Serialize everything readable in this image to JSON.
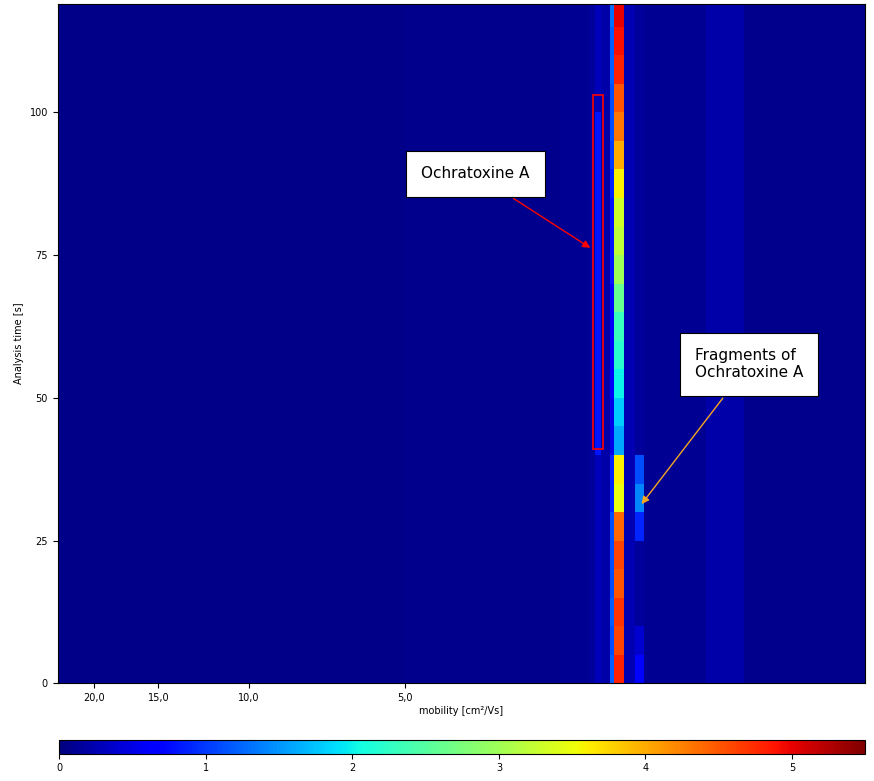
{
  "chart_data": {
    "type": "heatmap",
    "xlabel": "mobility [cm²/Vs]",
    "ylabel": "Analysis time [s]",
    "log": "x",
    "xlim": [
      23.5,
      0.64
    ],
    "xticks": [
      {
        "value": 20,
        "label": "20,0"
      },
      {
        "value": 15,
        "label": "15,0"
      },
      {
        "value": 10,
        "label": "10,0"
      },
      {
        "value": 5,
        "label": "5,0"
      }
    ],
    "ylim": [
      0,
      119
    ],
    "yticks": [
      0,
      25,
      50,
      75,
      100
    ],
    "x_edges": [
      23.5,
      5,
      2.5,
      2.2,
      2.14,
      2.08,
      2.0,
      1.96,
      1.875,
      1.79,
      1.72,
      1.3,
      1.1,
      0.64
    ],
    "y_edges": [
      0,
      5,
      10,
      15,
      20,
      25,
      30,
      35,
      40,
      45,
      50,
      55,
      60,
      65,
      70,
      75,
      80,
      85,
      90,
      95,
      100,
      105,
      110,
      115,
      119
    ],
    "cells": [
      [
        0.05,
        0.08,
        0.1,
        0.15,
        0.3,
        0.2,
        1.2,
        4.8,
        0.25,
        0.7,
        0.1,
        0.2,
        0.08
      ],
      [
        0.05,
        0.08,
        0.1,
        0.15,
        0.3,
        0.2,
        1.1,
        4.6,
        0.25,
        0.4,
        0.1,
        0.2,
        0.08
      ],
      [
        0.05,
        0.08,
        0.1,
        0.15,
        0.3,
        0.2,
        1.2,
        4.7,
        0.25,
        0.15,
        0.1,
        0.2,
        0.08
      ],
      [
        0.05,
        0.08,
        0.1,
        0.15,
        0.3,
        0.2,
        1.1,
        4.5,
        0.25,
        0.15,
        0.1,
        0.2,
        0.08
      ],
      [
        0.05,
        0.08,
        0.1,
        0.15,
        0.3,
        0.2,
        1.1,
        4.6,
        0.25,
        0.15,
        0.1,
        0.2,
        0.08
      ],
      [
        0.05,
        0.08,
        0.1,
        0.15,
        0.3,
        0.2,
        1.1,
        4.4,
        0.25,
        0.9,
        0.1,
        0.2,
        0.08
      ],
      [
        0.05,
        0.08,
        0.1,
        0.15,
        0.3,
        0.2,
        0.9,
        3.5,
        0.25,
        1.4,
        0.1,
        0.2,
        0.08
      ],
      [
        0.05,
        0.08,
        0.1,
        0.15,
        0.3,
        0.2,
        0.9,
        3.6,
        0.25,
        1.1,
        0.1,
        0.2,
        0.08
      ],
      [
        0.05,
        0.08,
        0.1,
        0.15,
        0.8,
        0.2,
        0.5,
        1.6,
        0.25,
        0.15,
        0.1,
        0.2,
        0.08
      ],
      [
        0.05,
        0.08,
        0.1,
        0.15,
        0.8,
        0.2,
        0.5,
        1.8,
        0.25,
        0.15,
        0.1,
        0.2,
        0.08
      ],
      [
        0.05,
        0.08,
        0.1,
        0.15,
        0.8,
        0.2,
        0.6,
        2.0,
        0.25,
        0.15,
        0.1,
        0.2,
        0.08
      ],
      [
        0.05,
        0.08,
        0.1,
        0.15,
        0.8,
        0.2,
        0.6,
        2.2,
        0.25,
        0.15,
        0.1,
        0.2,
        0.08
      ],
      [
        0.05,
        0.08,
        0.1,
        0.15,
        0.8,
        0.2,
        0.6,
        2.3,
        0.25,
        0.15,
        0.1,
        0.2,
        0.08
      ],
      [
        0.05,
        0.08,
        0.1,
        0.15,
        0.8,
        0.2,
        0.7,
        2.6,
        0.25,
        0.15,
        0.1,
        0.2,
        0.08
      ],
      [
        0.05,
        0.08,
        0.1,
        0.15,
        0.8,
        0.2,
        0.8,
        3.0,
        0.25,
        0.15,
        0.1,
        0.2,
        0.08
      ],
      [
        0.05,
        0.08,
        0.1,
        0.15,
        0.8,
        0.2,
        0.8,
        3.2,
        0.25,
        0.15,
        0.1,
        0.2,
        0.08
      ],
      [
        0.05,
        0.08,
        0.1,
        0.15,
        0.8,
        0.2,
        0.8,
        3.3,
        0.25,
        0.15,
        0.1,
        0.2,
        0.08
      ],
      [
        0.05,
        0.08,
        0.1,
        0.15,
        0.8,
        0.2,
        0.9,
        3.6,
        0.25,
        0.15,
        0.1,
        0.2,
        0.08
      ],
      [
        0.05,
        0.08,
        0.1,
        0.15,
        0.8,
        0.2,
        1.0,
        4.0,
        0.25,
        0.15,
        0.1,
        0.2,
        0.08
      ],
      [
        0.05,
        0.08,
        0.1,
        0.15,
        0.8,
        0.2,
        1.1,
        4.3,
        0.25,
        0.15,
        0.1,
        0.2,
        0.08
      ],
      [
        0.05,
        0.08,
        0.1,
        0.15,
        0.3,
        0.2,
        1.1,
        4.5,
        0.25,
        0.15,
        0.1,
        0.2,
        0.08
      ],
      [
        0.05,
        0.08,
        0.1,
        0.15,
        0.3,
        0.2,
        1.2,
        4.8,
        0.25,
        0.15,
        0.1,
        0.2,
        0.08
      ],
      [
        0.05,
        0.08,
        0.1,
        0.15,
        0.3,
        0.2,
        1.2,
        4.9,
        0.25,
        0.15,
        0.1,
        0.2,
        0.08
      ],
      [
        0.05,
        0.08,
        0.1,
        0.15,
        0.3,
        0.2,
        1.3,
        5.0,
        0.25,
        0.15,
        0.1,
        0.2,
        0.08
      ]
    ],
    "colorbar_lim": [
      0,
      5.5
    ],
    "colorbar_ticks": [
      0,
      1,
      2,
      3,
      4,
      5
    ],
    "annotations": [
      {
        "text": "Ochratoxine A",
        "x": 2.16,
        "y": 76,
        "color": "red",
        "region": {
          "x": [
            2.16,
            2.06
          ],
          "y": [
            41,
            103
          ]
        }
      },
      {
        "text": "Fragments of\nOchratoxine A",
        "x": 1.75,
        "y": 31,
        "color": "#f5a623"
      }
    ]
  }
}
